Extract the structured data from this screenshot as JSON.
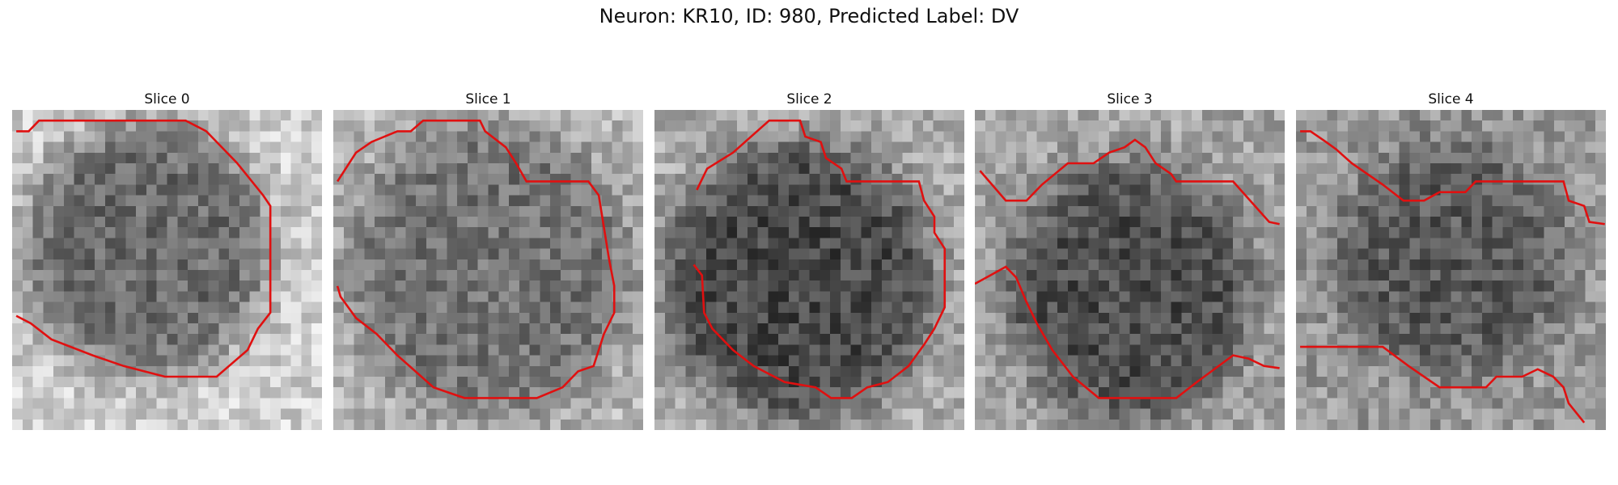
{
  "title": "Neuron: KR10, ID: 980, Predicted Label: DV",
  "panels": [
    {
      "title": "Slice 0"
    },
    {
      "title": "Slice 1"
    },
    {
      "title": "Slice 2"
    },
    {
      "title": "Slice 3"
    },
    {
      "title": "Slice 4"
    }
  ]
}
